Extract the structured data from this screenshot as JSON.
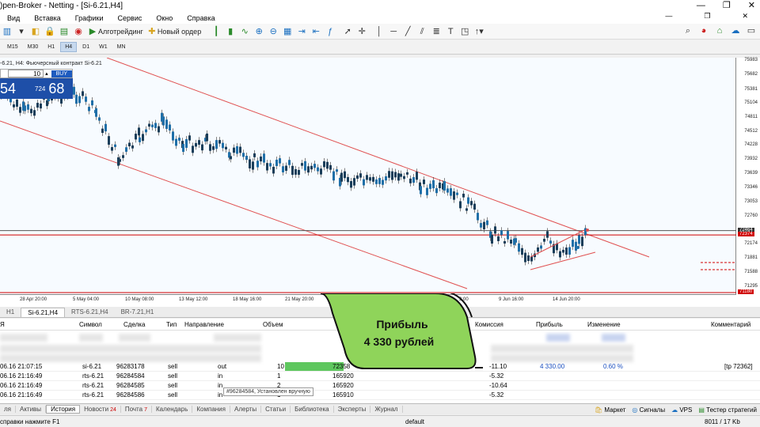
{
  "window": {
    "title": ")pen-Broker - Netting - [Si-6.21,H4]"
  },
  "menu": [
    "Вид",
    "Вставка",
    "Графики",
    "Сервис",
    "Окно",
    "Справка"
  ],
  "toolbar": {
    "algo": "Алготрейдинг",
    "new_order": "Новый ордер",
    "notif_count": "1"
  },
  "timeframes": [
    {
      "label": "M15",
      "active": false
    },
    {
      "label": "M30",
      "active": false
    },
    {
      "label": "H1",
      "active": false
    },
    {
      "label": "H4",
      "active": true
    },
    {
      "label": "D1",
      "active": false
    },
    {
      "label": "W1",
      "active": false
    },
    {
      "label": "MN",
      "active": false
    }
  ],
  "chart": {
    "title": "-6.21, H4: Фьючерсный контракт Si-6.21",
    "one_click": {
      "qty": "10",
      "buy": "BUY",
      "sell_price": "54",
      "buy_small": "724",
      "buy_big": "68"
    },
    "y_ticks": [
      "75983",
      "75682",
      "75381",
      "75104",
      "74811",
      "74512",
      "74228",
      "73932",
      "73639",
      "73346",
      "73053",
      "72760",
      "72464",
      "72374",
      "72174",
      "71881",
      "71588",
      "71295",
      "71180"
    ],
    "y_tag_red1": "72464",
    "y_tag_red2": "72374",
    "y_tag_red3": "71180",
    "x_ticks": [
      "28 Apr 20:00",
      "5 May 04:00",
      "10 May 08:00",
      "13 May 12:00",
      "18 May 16:00",
      "21 May 20:00",
      "2:00",
      "9 Jun 16:00",
      "14 Jun 20:00"
    ],
    "colors": {
      "bull": "#1f6fa8",
      "bear": "#1a3e5a",
      "channel": "#e05050",
      "hline": "#d00000"
    }
  },
  "chart_tabs": [
    "Si-6.21,H4",
    "RTS-6.21,H4",
    "BR-7.21,H1"
  ],
  "table": {
    "headers": [
      "Символ",
      "Сделка",
      "Тип",
      "Направление",
      "Объем",
      "Комиссия",
      "Прибыль",
      "Изменение",
      "Комментарий"
    ],
    "rows": [
      {
        "time": "06.16 21:07:15",
        "symbol": "si-6.21",
        "deal": "96283178",
        "type": "sell",
        "dir": "out",
        "vol": "10",
        "price": "72358",
        "comm": "-11.10",
        "profit": "4 330.00",
        "change": "0.60 %",
        "comment": "[tp 72362]"
      },
      {
        "time": "06.16 21:16:49",
        "symbol": "rts-6.21",
        "deal": "96284584",
        "type": "sell",
        "dir": "in",
        "vol": "1",
        "price": "165920",
        "comm": "-5.32",
        "profit": "",
        "change": "",
        "comment": ""
      },
      {
        "time": "06.16 21:16:49",
        "symbol": "rts-6.21",
        "deal": "96284585",
        "type": "sell",
        "dir": "in",
        "vol": "2",
        "price": "165920",
        "comm": "-10.64",
        "profit": "",
        "change": "",
        "comment": ""
      },
      {
        "time": "06.16 21:16:49",
        "symbol": "rts-6.21",
        "deal": "96284586",
        "type": "sell",
        "dir": "in",
        "vol": "1",
        "price": "165910",
        "comm": "-5.32",
        "profit": "",
        "change": "",
        "comment": ""
      }
    ],
    "tooltip": "#96284584, Установлен вручную"
  },
  "callout": {
    "line1": "Прибыль",
    "line2": "4 330 рублей"
  },
  "bottom_tabs": [
    {
      "label": "ля",
      "count": ""
    },
    {
      "label": "Активы",
      "count": ""
    },
    {
      "label": "История",
      "count": "",
      "active": true
    },
    {
      "label": "Новости",
      "count": "24"
    },
    {
      "label": "Почта",
      "count": "7"
    },
    {
      "label": "Календарь",
      "count": ""
    },
    {
      "label": "Компания",
      "count": ""
    },
    {
      "label": "Алерты",
      "count": ""
    },
    {
      "label": "Статьи",
      "count": ""
    },
    {
      "label": "Библиотека",
      "count": ""
    },
    {
      "label": "Эксперты",
      "count": ""
    },
    {
      "label": "Журнал",
      "count": ""
    }
  ],
  "bottom_right": [
    "Маркет",
    "Сигналы",
    "VPS",
    "Тестер стратегий"
  ],
  "status": {
    "help": "справки нажмите F1",
    "profile": "default",
    "traffic": "8011 / 17 Kb"
  }
}
